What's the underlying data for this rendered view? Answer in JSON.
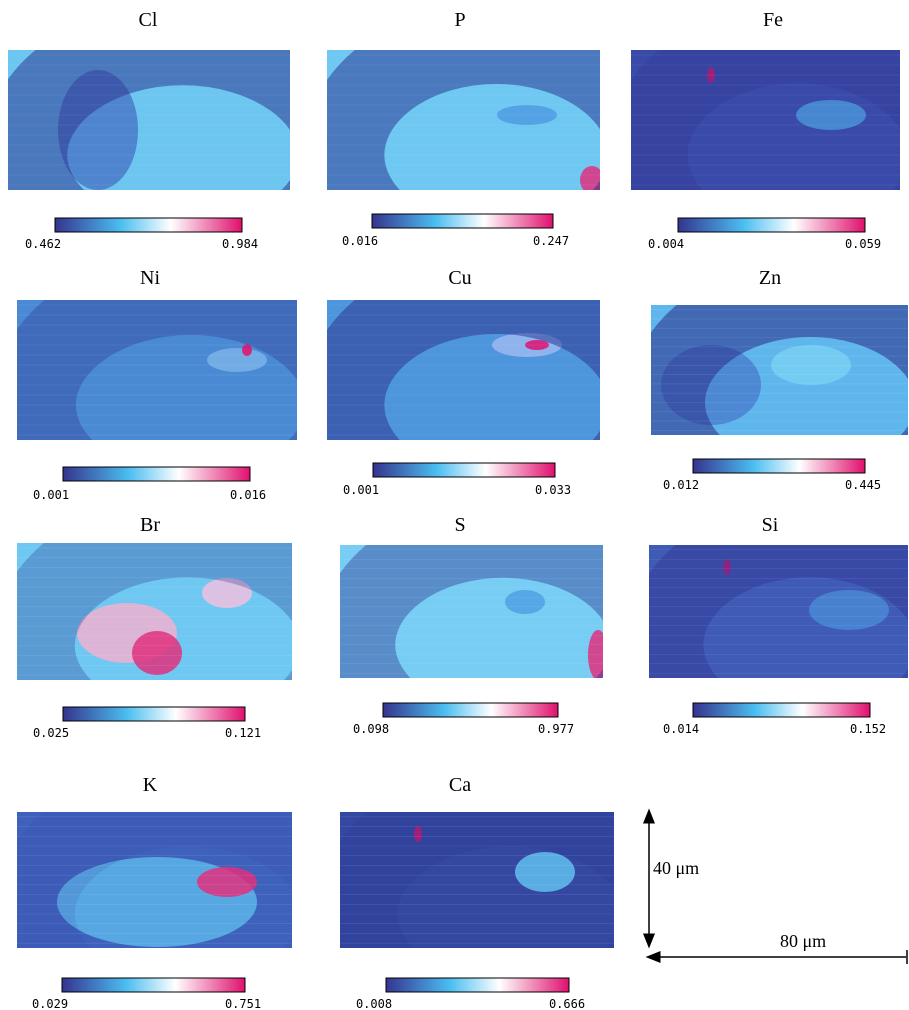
{
  "panels": [
    {
      "label": "Cl",
      "min": "0.462",
      "max": "0.984"
    },
    {
      "label": "P",
      "min": "0.016",
      "max": "0.247"
    },
    {
      "label": "Fe",
      "min": "0.004",
      "max": "0.059"
    },
    {
      "label": "Ni",
      "min": "0.001",
      "max": "0.016"
    },
    {
      "label": "Cu",
      "min": "0.001",
      "max": "0.033"
    },
    {
      "label": "Zn",
      "min": "0.012",
      "max": "0.445"
    },
    {
      "label": "Br",
      "min": "0.025",
      "max": "0.121"
    },
    {
      "label": "S",
      "min": "0.098",
      "max": "0.977"
    },
    {
      "label": "Si",
      "min": "0.014",
      "max": "0.152"
    },
    {
      "label": "K",
      "min": "0.029",
      "max": "0.751"
    },
    {
      "label": "Ca",
      "min": "0.008",
      "max": "0.666"
    }
  ],
  "scale": {
    "vertical": "40 μm",
    "horizontal": "80 μm"
  }
}
